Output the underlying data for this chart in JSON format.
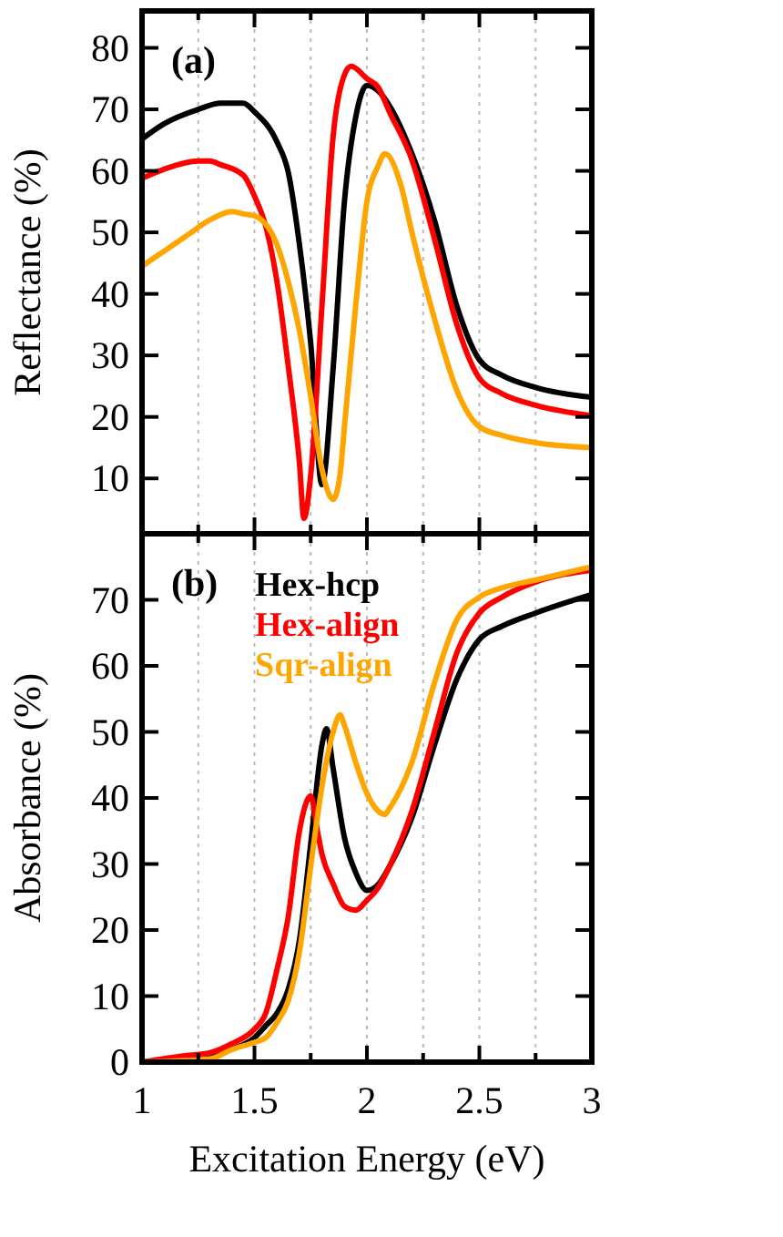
{
  "chart_data": [
    {
      "type": "line",
      "ylabel": "Reflectance (%)",
      "annotations": [
        "(a)"
      ],
      "xlim": [
        1,
        3
      ],
      "ylim": [
        1,
        86
      ],
      "xticks": [
        1,
        {
          "value": 1.25,
          "label": null
        },
        1.5,
        {
          "value": 1.75,
          "label": null
        },
        2,
        {
          "value": 2.25,
          "label": null
        },
        2.5,
        {
          "value": 2.75,
          "label": null
        },
        3
      ],
      "yticks": [
        10,
        20,
        30,
        40,
        50,
        60,
        70,
        80
      ],
      "tick_labels": "y",
      "grid": "x",
      "legend": false,
      "line_style": "solid",
      "series": [
        {
          "color": "#000000",
          "x": [
            1,
            1.1,
            1.25,
            1.35,
            1.45,
            1.5,
            1.6,
            1.65,
            1.7,
            1.75,
            1.8,
            1.85,
            1.9,
            1.95,
            2.0,
            2.05,
            2.1,
            2.2,
            2.3,
            2.4,
            2.5,
            2.6,
            2.75,
            3
          ],
          "values": [
            65.2,
            67.7,
            70,
            71,
            71,
            69.6,
            64.7,
            59.8,
            48,
            32,
            9,
            28,
            55,
            68.7,
            73.9,
            73,
            70.6,
            62.8,
            52,
            38,
            29.3,
            26.8,
            24.8,
            23.2
          ]
        },
        {
          "color": "#ff0000",
          "x": [
            1,
            1.1,
            1.25,
            1.3,
            1.35,
            1.45,
            1.5,
            1.55,
            1.6,
            1.65,
            1.7,
            1.72,
            1.75,
            1.8,
            1.85,
            1.9,
            1.93,
            2.0,
            2.05,
            2.1,
            2.2,
            2.3,
            2.4,
            2.5,
            2.6,
            2.75,
            3
          ],
          "values": [
            58.8,
            60.3,
            61.6,
            61.6,
            61,
            59.3,
            55.9,
            51,
            42,
            28.3,
            12.5,
            3.5,
            10.5,
            38,
            65.7,
            75.6,
            77,
            75,
            73.6,
            69.6,
            61.8,
            49,
            35,
            26.3,
            23.8,
            21.9,
            20.2
          ]
        },
        {
          "color": "#ffa500",
          "x": [
            1,
            1.1,
            1.2,
            1.3,
            1.4,
            1.45,
            1.5,
            1.6,
            1.65,
            1.7,
            1.75,
            1.8,
            1.85,
            1.88,
            1.9,
            1.95,
            2.0,
            2.05,
            2.08,
            2.15,
            2.2,
            2.3,
            2.4,
            2.5,
            2.6,
            2.75,
            3
          ],
          "values": [
            44.5,
            47,
            49.5,
            52,
            53.4,
            53,
            52.7,
            48,
            42,
            34,
            23.3,
            11.5,
            6.6,
            10.5,
            18.4,
            38,
            55,
            60.8,
            62.8,
            57.8,
            50,
            36,
            24.3,
            18.4,
            17,
            15.8,
            15
          ]
        }
      ]
    },
    {
      "type": "line",
      "xlabel": "Excitation Energy (eV)",
      "ylabel": "Absorbance (%)",
      "annotations": [
        "(b)"
      ],
      "xlim": [
        1,
        3
      ],
      "ylim": [
        0,
        80
      ],
      "xticks": [
        1,
        {
          "value": 1.25,
          "label": null
        },
        1.5,
        {
          "value": 1.75,
          "label": null
        },
        2,
        {
          "value": 2.25,
          "label": null
        },
        2.5,
        {
          "value": 2.75,
          "label": null
        },
        3
      ],
      "yticks": [
        0,
        10,
        20,
        30,
        40,
        50,
        60,
        70
      ],
      "grid": "x",
      "legend": "top left",
      "line_style": "solid",
      "series": [
        {
          "name": "Hex-hcp",
          "color": "#000000",
          "x": [
            1,
            1.2,
            1.3,
            1.4,
            1.5,
            1.55,
            1.6,
            1.65,
            1.7,
            1.75,
            1.8,
            1.82,
            1.85,
            1.9,
            1.95,
            2.0,
            2.05,
            2.1,
            2.2,
            2.3,
            2.4,
            2.5,
            2.6,
            2.75,
            3
          ],
          "values": [
            0,
            0.5,
            1,
            2,
            3.7,
            5.5,
            7.4,
            11,
            18.5,
            33,
            48,
            50.5,
            44.4,
            34,
            28.7,
            26,
            26.9,
            29.6,
            37,
            48,
            58,
            64,
            66,
            68,
            70.8
          ]
        },
        {
          "name": "Hex-align",
          "color": "#ff0000",
          "x": [
            1,
            1.2,
            1.3,
            1.4,
            1.5,
            1.55,
            1.6,
            1.65,
            1.7,
            1.75,
            1.78,
            1.8,
            1.85,
            1.9,
            1.95,
            2.0,
            2.05,
            2.1,
            2.2,
            2.3,
            2.4,
            2.5,
            2.6,
            2.75,
            3
          ],
          "values": [
            0,
            1,
            1.4,
            2.8,
            5,
            7.4,
            14,
            22,
            35,
            40.3,
            35,
            31.5,
            27,
            23.6,
            23,
            24.5,
            26.4,
            29.6,
            38,
            50,
            62,
            68,
            70.4,
            72.7,
            74.5
          ]
        },
        {
          "name": "Sqr-align",
          "color": "#ffa500",
          "x": [
            1,
            1.3,
            1.4,
            1.5,
            1.55,
            1.6,
            1.65,
            1.7,
            1.75,
            1.8,
            1.85,
            1.88,
            1.9,
            1.95,
            2.0,
            2.05,
            2.08,
            2.1,
            2.2,
            2.3,
            2.4,
            2.5,
            2.6,
            2.75,
            3
          ],
          "values": [
            0,
            0.5,
            1.9,
            3,
            3.7,
            6,
            9.3,
            16.7,
            29.6,
            41.7,
            50,
            52.6,
            51,
            45.4,
            40.7,
            38,
            37.5,
            38.4,
            45.4,
            57.4,
            67,
            70.4,
            71.8,
            73,
            75
          ]
        }
      ]
    }
  ]
}
